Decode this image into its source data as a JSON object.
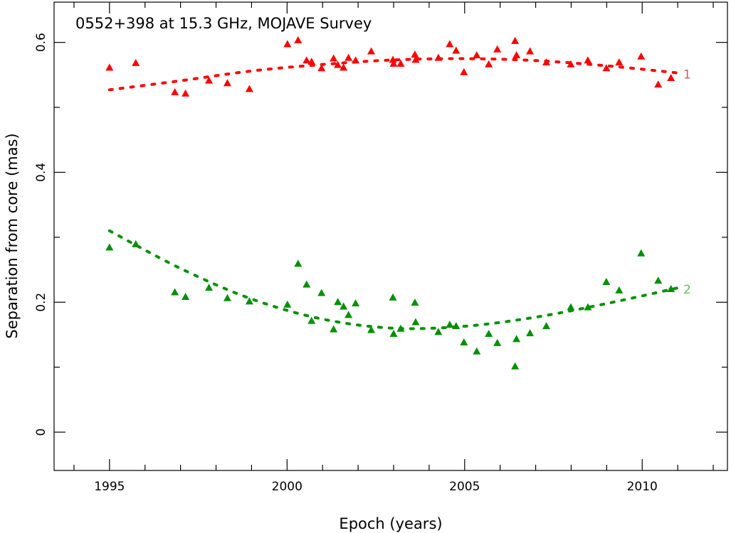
{
  "chart_data": {
    "type": "scatter",
    "title": "0552+398 at 15.3 GHz, MOJAVE Survey",
    "xlabel": "Epoch (years)",
    "ylabel": "Separation from core (mas)",
    "xlim": [
      1993.44,
      2012.4
    ],
    "ylim": [
      -0.059,
      0.662
    ],
    "xticks": [
      1995,
      2000,
      2005,
      2010
    ],
    "xtick_labels": [
      "1995",
      "2000",
      "2005",
      "2010"
    ],
    "yticks": [
      0,
      0.2,
      0.4,
      0.6
    ],
    "ytick_labels": [
      "0",
      "0.2",
      "0.4",
      "0.6"
    ],
    "x_minor_step": 1,
    "y_minor_step": 0.1,
    "grid": false,
    "series": [
      {
        "name": "1",
        "color": "#ff0000",
        "label_color": "#d06060",
        "marker": "triangle",
        "x": [
          1995.0,
          1995.74,
          1996.84,
          1997.14,
          1997.8,
          1998.32,
          1998.94,
          2000.01,
          2000.31,
          2000.55,
          2000.69,
          2000.97,
          2001.31,
          2001.43,
          2001.59,
          2001.73,
          2001.93,
          2002.37,
          2002.98,
          2003.0,
          2003.2,
          2003.6,
          2003.62,
          2004.26,
          2004.58,
          2004.76,
          2004.98,
          2005.34,
          2005.68,
          2005.92,
          2006.42,
          2006.46,
          2006.84,
          2007.3,
          2007.99,
          2008.47,
          2008.99,
          2009.35,
          2009.97,
          2010.45,
          2010.81
        ],
        "y": [
          0.561,
          0.568,
          0.523,
          0.521,
          0.541,
          0.537,
          0.528,
          0.597,
          0.603,
          0.572,
          0.57,
          0.56,
          0.575,
          0.565,
          0.561,
          0.576,
          0.572,
          0.586,
          0.573,
          0.567,
          0.567,
          0.581,
          0.573,
          0.576,
          0.597,
          0.587,
          0.554,
          0.58,
          0.566,
          0.589,
          0.602,
          0.58,
          0.586,
          0.569,
          0.566,
          0.572,
          0.56,
          0.569,
          0.578,
          0.535,
          0.545
        ],
        "fit": {
          "x": [
            1995,
            1997,
            1999,
            2001,
            2003,
            2005,
            2007,
            2009,
            2011
          ],
          "y": [
            0.527,
            0.541,
            0.556,
            0.566,
            0.573,
            0.575,
            0.572,
            0.564,
            0.553
          ]
        }
      },
      {
        "name": "2",
        "color": "#009000",
        "label_color": "#60c060",
        "marker": "triangle",
        "x": [
          1995.0,
          1995.74,
          1996.84,
          1997.14,
          1997.8,
          1998.32,
          1998.94,
          2000.01,
          2000.31,
          2000.55,
          2000.69,
          2000.97,
          2001.31,
          2001.43,
          2001.59,
          2001.73,
          2001.93,
          2002.37,
          2002.98,
          2003.0,
          2003.2,
          2003.6,
          2003.62,
          2004.26,
          2004.58,
          2004.76,
          2004.98,
          2005.34,
          2005.68,
          2005.92,
          2006.42,
          2006.46,
          2006.84,
          2007.3,
          2007.99,
          2008.47,
          2008.99,
          2009.35,
          2009.97,
          2010.45,
          2010.81
        ],
        "y": [
          0.284,
          0.289,
          0.215,
          0.208,
          0.222,
          0.206,
          0.201,
          0.196,
          0.259,
          0.227,
          0.171,
          0.214,
          0.158,
          0.2,
          0.193,
          0.18,
          0.198,
          0.157,
          0.207,
          0.151,
          0.159,
          0.199,
          0.169,
          0.154,
          0.165,
          0.163,
          0.138,
          0.124,
          0.151,
          0.137,
          0.101,
          0.143,
          0.152,
          0.163,
          0.192,
          0.192,
          0.231,
          0.218,
          0.275,
          0.233,
          0.22
        ],
        "fit": {
          "x": [
            1995,
            1997,
            1999,
            2001,
            2003,
            2005,
            2007,
            2009,
            2011
          ],
          "y": [
            0.31,
            0.252,
            0.205,
            0.174,
            0.16,
            0.163,
            0.177,
            0.198,
            0.222
          ]
        }
      }
    ]
  }
}
